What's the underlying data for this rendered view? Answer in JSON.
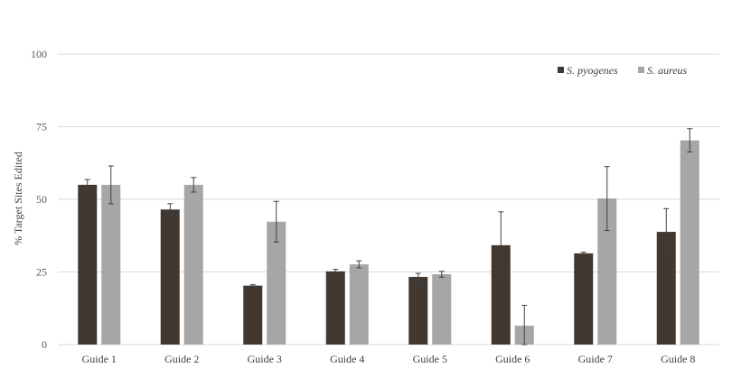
{
  "chart_data": {
    "type": "bar",
    "title": "",
    "xlabel": "",
    "ylabel": "% Target Sites Edited",
    "ylim": [
      0,
      100
    ],
    "yticks": [
      0,
      25,
      50,
      75,
      100
    ],
    "grid": true,
    "legend_position": "top-right",
    "categories": [
      "Guide 1",
      "Guide 2",
      "Guide 3",
      "Guide 4",
      "Guide 5",
      "Guide 6",
      "Guide 7",
      "Guide 8"
    ],
    "series": [
      {
        "name": "S. pyogenes",
        "color": "#403831",
        "values": [
          55,
          46.5,
          20.3,
          25.2,
          23.3,
          34.2,
          31.4,
          38.8
        ],
        "errors": [
          1.8,
          2,
          0.3,
          0.7,
          1.2,
          11.5,
          0.4,
          8
        ]
      },
      {
        "name": "S. aureus",
        "color": "#a6a6a6",
        "values": [
          55,
          55,
          42.3,
          27.6,
          24.2,
          6.5,
          50.3,
          70.3
        ],
        "errors": [
          6.5,
          2.5,
          7,
          1.2,
          1,
          7,
          11,
          4
        ]
      }
    ]
  }
}
